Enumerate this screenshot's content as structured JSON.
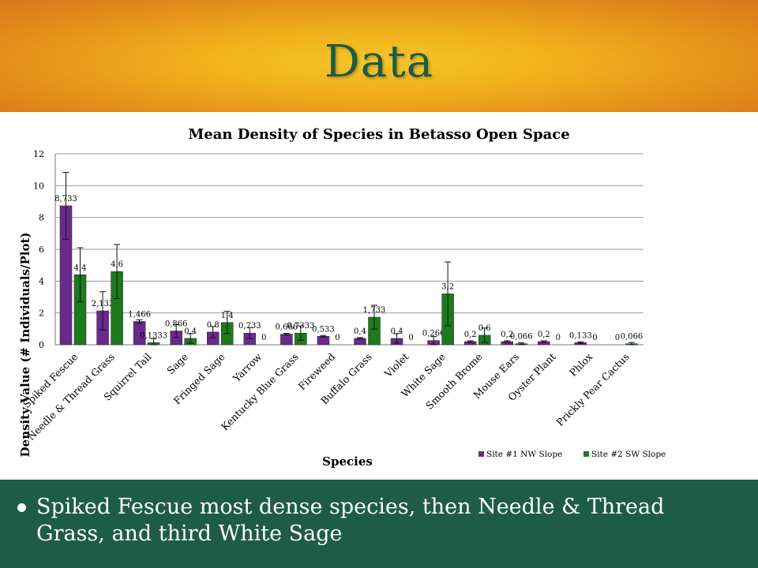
{
  "slide": {
    "title": "Data",
    "bullet": "Spiked Fescue most dense species, then Needle & Thread Grass, and third White Sage"
  },
  "chart_data": {
    "type": "bar",
    "title": "Mean Density of Species in Betasso Open Space",
    "xlabel": "Species",
    "ylabel": "Density Value (# Individuals/Plot)",
    "ylim": [
      0,
      12
    ],
    "yticks": [
      0,
      2,
      4,
      6,
      8,
      10,
      12
    ],
    "grid": true,
    "legend_position": "bottom-right",
    "categories": [
      "Spiked Fescue",
      "Needle & Thread Grass",
      "Squirrel Tail",
      "Sage",
      "Fringed Sage",
      "Yarrow",
      "Kentucky Blue Grass",
      "Fireweed",
      "Buffalo Grass",
      "Violet",
      "White Sage",
      "Smooth Brome",
      "Mouse Ears",
      "Oyster Plant",
      "Phlox",
      "Prickly Pear Cactus"
    ],
    "series": [
      {
        "name": "Site #1 NW Slope",
        "color": "#6a2a8c",
        "values": [
          8.733,
          2.133,
          1.466,
          0.866,
          0.8,
          0.733,
          0.666,
          0.533,
          0.4,
          0.4,
          0.266,
          0.2,
          0.2,
          0.2,
          0.133,
          0
        ],
        "labels": [
          "8,733",
          "2,133",
          "1,466",
          "0,866",
          "0,8",
          "0,733",
          "0,666",
          "0,533",
          "0,4",
          "0,4",
          "0,266",
          "0,2",
          "0,2",
          "0,2",
          "0,133",
          "0"
        ],
        "errors": [
          2.1,
          1.2,
          0.1,
          0.4,
          0.35,
          0.35,
          0.05,
          0.05,
          0.05,
          0.3,
          0.25,
          0.05,
          0.05,
          0.05,
          0.05,
          0
        ]
      },
      {
        "name": "Site #2 SW Slope",
        "color": "#1d7a1d",
        "values": [
          4.4,
          4.6,
          0.1333,
          0.4,
          1.4,
          0,
          0.7333,
          0,
          1.733,
          0,
          3.2,
          0.6,
          0.066,
          0,
          0,
          0.066
        ],
        "labels": [
          "4,4",
          "4,6",
          "0,1333",
          "0,4",
          "1,4",
          "0",
          "0,7333",
          "0",
          "1,733",
          "0",
          "3,2",
          "0,6",
          "0,066",
          "0",
          "0",
          "0,066"
        ],
        "errors": [
          1.7,
          1.7,
          0.25,
          0.3,
          0.7,
          0,
          0.45,
          0,
          0.75,
          0,
          2.0,
          0.45,
          0.05,
          0,
          0,
          0.08
        ]
      }
    ]
  }
}
